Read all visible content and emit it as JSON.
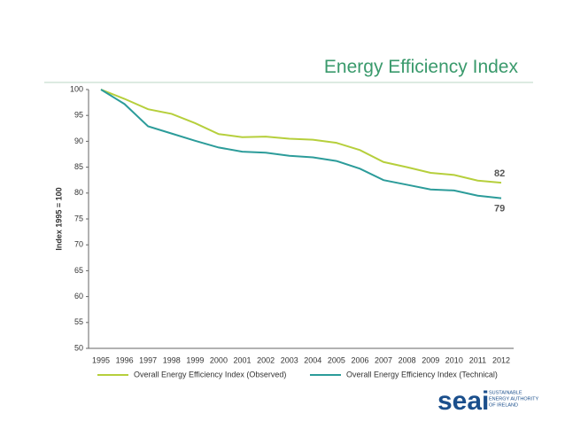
{
  "chart_data": {
    "type": "line",
    "title": "Energy Efficiency Index",
    "y_label": "Index 1995 = 100",
    "categories": [
      "1995",
      "1996",
      "1997",
      "1998",
      "1999",
      "2000",
      "2001",
      "2002",
      "2003",
      "2004",
      "2005",
      "2006",
      "2007",
      "2008",
      "2009",
      "2010",
      "2011",
      "2012"
    ],
    "series": [
      {
        "name": "Overall Energy Efficiency Index (Observed)",
        "color": "#b6cf3c",
        "values": [
          100,
          98.2,
          96.2,
          95.3,
          93.5,
          91.4,
          90.8,
          90.9,
          90.5,
          90.3,
          89.7,
          88.3,
          86.0,
          85.0,
          83.9,
          83.5,
          82.4,
          82
        ]
      },
      {
        "name": "Overall Energy Efficiency Index (Technical)",
        "color": "#2c9c9a",
        "values": [
          100,
          97.2,
          92.9,
          91.5,
          90.1,
          88.8,
          88.0,
          87.8,
          87.2,
          86.9,
          86.2,
          84.7,
          82.5,
          81.6,
          80.7,
          80.5,
          79.5,
          79
        ]
      }
    ],
    "ylim": [
      50,
      100
    ],
    "yticks": [
      50,
      55,
      60,
      65,
      70,
      75,
      80,
      85,
      90,
      95,
      100
    ],
    "grid": false,
    "legend": "bottom"
  },
  "logo": {
    "text": "seai",
    "tagline": [
      "SUSTAINABLE",
      "ENERGY AUTHORITY",
      "OF IRELAND"
    ]
  }
}
